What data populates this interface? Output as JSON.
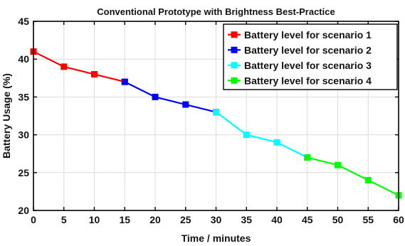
{
  "chart_data": {
    "type": "line",
    "title": "Conventional Prototype with Brightness Best-Practice",
    "xlabel": "Time / minutes",
    "ylabel": "Battery Usage (%)",
    "xlim": [
      0,
      60
    ],
    "ylim": [
      20,
      45
    ],
    "xticks": [
      "0",
      "5",
      "10",
      "15",
      "20",
      "25",
      "30",
      "35",
      "40",
      "45",
      "50",
      "55",
      "60"
    ],
    "yticks": [
      "20",
      "25",
      "30",
      "35",
      "40",
      "45"
    ],
    "grid": true,
    "legend_position": "top-right",
    "series": [
      {
        "name": "Battery level for scenario 1",
        "color": "#ff0000",
        "marker": "square",
        "x": [
          0,
          5,
          10,
          15
        ],
        "y": [
          41,
          39,
          38,
          37
        ]
      },
      {
        "name": "Battery level for scenario 2",
        "color": "#0000ff",
        "marker": "square",
        "x": [
          15,
          20,
          25,
          30
        ],
        "y": [
          37,
          35,
          34,
          33
        ]
      },
      {
        "name": "Battery level for scenario 3",
        "color": "#00ffff",
        "marker": "square",
        "x": [
          30,
          35,
          40,
          45
        ],
        "y": [
          33,
          30,
          29,
          27
        ]
      },
      {
        "name": "Battery level for scenario 4",
        "color": "#00ff00",
        "marker": "square",
        "x": [
          45,
          50,
          55,
          60
        ],
        "y": [
          27,
          26,
          24,
          22
        ]
      }
    ]
  }
}
